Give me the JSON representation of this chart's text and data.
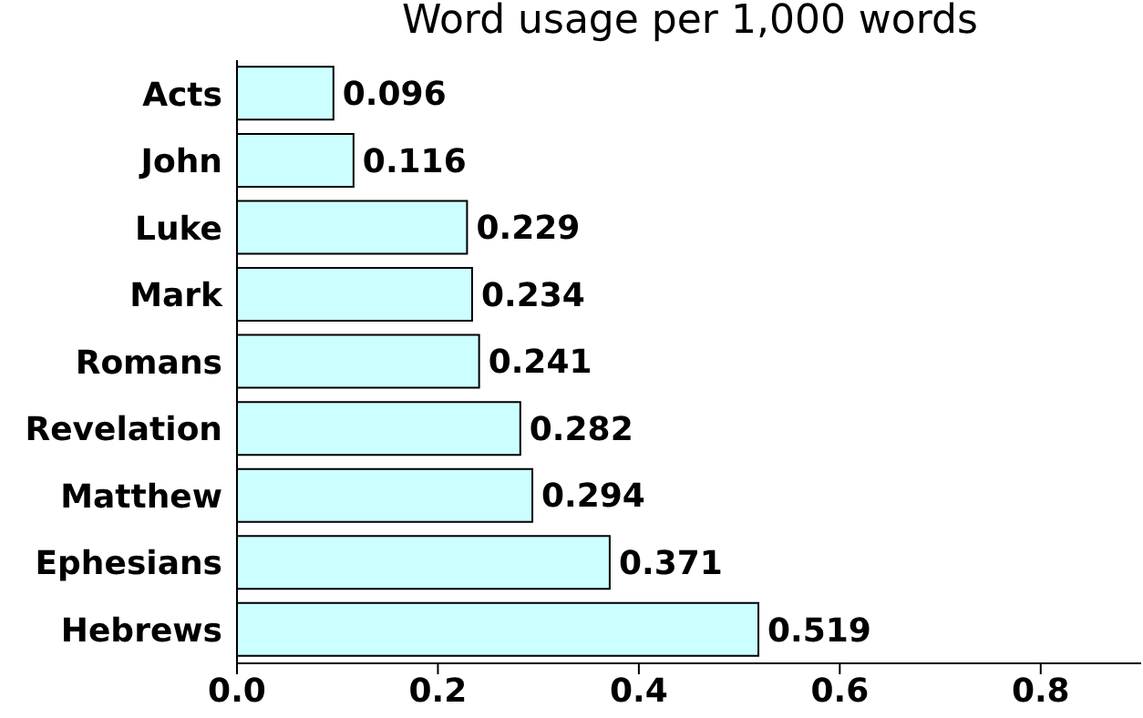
{
  "chart_data": {
    "type": "bar",
    "orientation": "horizontal",
    "title": "Word usage per 1,000 words",
    "categories": [
      "Acts",
      "John",
      "Luke",
      "Mark",
      "Romans",
      "Revelation",
      "Matthew",
      "Ephesians",
      "Hebrews"
    ],
    "values": [
      0.096,
      0.116,
      0.229,
      0.234,
      0.241,
      0.282,
      0.294,
      0.371,
      0.519
    ],
    "color": "#ccffff",
    "data_labels": true,
    "grid": false,
    "xlim": [
      0,
      0.9
    ],
    "xticks": [
      {
        "value": 0,
        "label": "0.0"
      },
      {
        "value": 0.2,
        "label": "0.2"
      },
      {
        "value": 0.4,
        "label": "0.4"
      },
      {
        "value": 0.6,
        "label": "0.6"
      },
      {
        "value": 0.8,
        "label": "0.8"
      }
    ]
  }
}
